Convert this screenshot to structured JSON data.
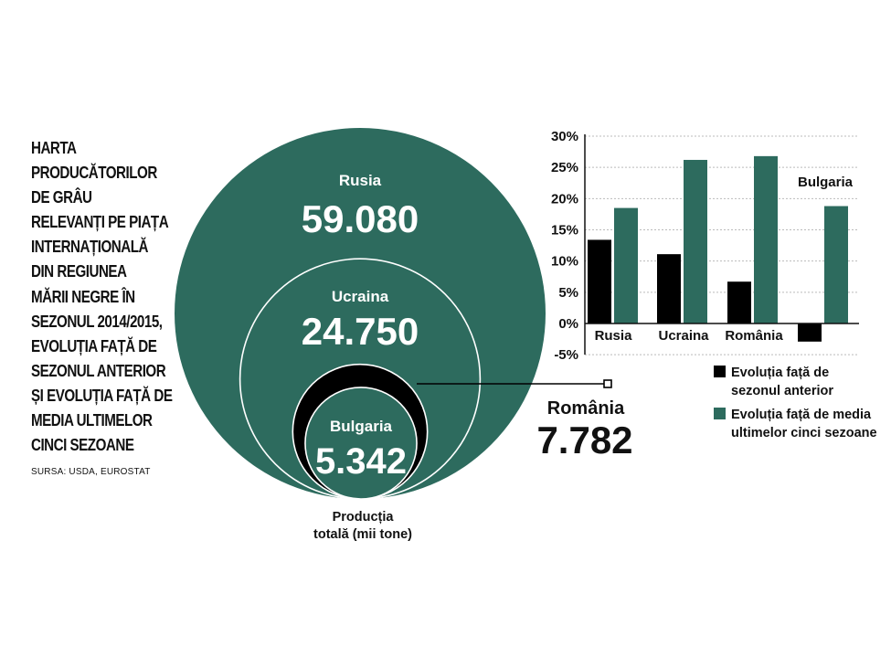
{
  "title_lines": [
    "HARTA",
    "PRODUCĂTORILOR",
    "DE GRÂU",
    "RELEVANȚI PE PIAȚA",
    "INTERNAȚIONALĂ",
    "DIN REGIUNEA",
    "MĂRII NEGRE ÎN",
    "SEZONUL 2014/2015,",
    "EVOLUȚIA FAȚĂ DE",
    "SEZONUL ANTERIOR",
    "ȘI EVOLUȚIA FAȚĂ DE",
    "MEDIA ULTIMELOR",
    "CINCI SEZOANE"
  ],
  "source": "SURSA: USDA, EUROSTAT",
  "colors": {
    "green": "#2d6b5e",
    "black": "#000000",
    "white": "#ffffff"
  },
  "chart_data": [
    {
      "type": "bubble",
      "caption": "Producția totală (mii tone)",
      "caption_lines": [
        "Producția",
        "totală (mii tone)"
      ],
      "bubbles": [
        {
          "name": "Rusia",
          "value": 59080,
          "label": "59.080",
          "color": "#2d6b5e"
        },
        {
          "name": "Ucraina",
          "value": 24750,
          "label": "24.750",
          "color": "#2d6b5e"
        },
        {
          "name": "România",
          "value": 7782,
          "label": "7.782",
          "color": "#000000"
        },
        {
          "name": "Bulgaria",
          "value": 5342,
          "label": "5.342",
          "color": "#2d6b5e"
        }
      ]
    },
    {
      "type": "bar",
      "categories": [
        "Rusia",
        "Ucraina",
        "România",
        "Bulgaria"
      ],
      "series": [
        {
          "name": "Evoluția față de sezonul anterior",
          "legend_lines": [
            "Evoluția față de",
            "sezonul anterior"
          ],
          "color": "#000000",
          "values": [
            13.4,
            11.1,
            6.7,
            -2.9
          ]
        },
        {
          "name": "Evoluția față de media ultimelor cinci sezoane",
          "legend_lines": [
            "Evoluția față de media",
            "ultimelor cinci sezoane"
          ],
          "color": "#2d6b5e",
          "values": [
            18.5,
            26.2,
            26.8,
            18.8
          ]
        }
      ],
      "yticks": [
        "-5%",
        "0%",
        "5%",
        "10%",
        "15%",
        "20%",
        "25%",
        "30%"
      ],
      "ylim": [
        -5,
        30
      ],
      "grid": true,
      "legend": "bottom-right"
    }
  ]
}
